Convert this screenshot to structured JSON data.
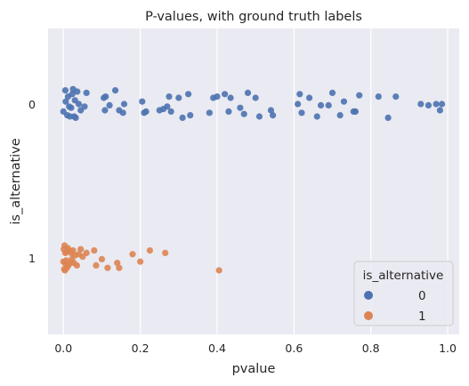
{
  "chart_data": {
    "type": "scatter",
    "title": "P-values, with ground truth labels",
    "xlabel": "pvalue",
    "ylabel": "is_alternative",
    "xlim": [
      -0.04,
      1.03
    ],
    "x_ticks": [
      "0.0",
      "0.2",
      "0.4",
      "0.6",
      "0.8",
      "1.0"
    ],
    "x_tick_values": [
      0.0,
      0.2,
      0.4,
      0.6,
      0.8,
      1.0
    ],
    "y_categories": [
      "0",
      "1"
    ],
    "grid": true,
    "background": "#eaeaf2",
    "legend": {
      "title": "is_alternative",
      "placement": "lower-right",
      "entries": [
        "0",
        "1"
      ]
    },
    "series": [
      {
        "name": "0",
        "category": "0",
        "color": "#4c72b0",
        "points": [
          [
            0.0,
            0.06
          ],
          [
            0.005,
            -0.11
          ],
          [
            0.006,
            -0.02
          ],
          [
            0.01,
            0.09
          ],
          [
            0.012,
            -0.06
          ],
          [
            0.015,
            0.02
          ],
          [
            0.017,
            0.1
          ],
          [
            0.02,
            0.03
          ],
          [
            0.023,
            -0.08
          ],
          [
            0.025,
            -0.12
          ],
          [
            0.028,
            0.1
          ],
          [
            0.03,
            -0.03
          ],
          [
            0.032,
            0.11
          ],
          [
            0.036,
            -0.1
          ],
          [
            0.04,
            0.0
          ],
          [
            0.045,
            0.05
          ],
          [
            0.055,
            0.02
          ],
          [
            0.06,
            -0.09
          ],
          [
            0.105,
            -0.05
          ],
          [
            0.108,
            0.05
          ],
          [
            0.11,
            -0.06
          ],
          [
            0.12,
            0.01
          ],
          [
            0.135,
            -0.11
          ],
          [
            0.145,
            0.05
          ],
          [
            0.155,
            0.07
          ],
          [
            0.158,
            0.0
          ],
          [
            0.205,
            -0.02
          ],
          [
            0.21,
            0.07
          ],
          [
            0.215,
            0.06
          ],
          [
            0.25,
            0.05
          ],
          [
            0.26,
            0.04
          ],
          [
            0.27,
            0.02
          ],
          [
            0.275,
            -0.06
          ],
          [
            0.28,
            0.06
          ],
          [
            0.3,
            -0.05
          ],
          [
            0.31,
            0.11
          ],
          [
            0.325,
            -0.08
          ],
          [
            0.33,
            0.09
          ],
          [
            0.38,
            0.07
          ],
          [
            0.39,
            -0.05
          ],
          [
            0.4,
            -0.06
          ],
          [
            0.42,
            -0.08
          ],
          [
            0.43,
            0.06
          ],
          [
            0.435,
            -0.05
          ],
          [
            0.46,
            0.03
          ],
          [
            0.47,
            0.08
          ],
          [
            0.48,
            -0.09
          ],
          [
            0.5,
            -0.05
          ],
          [
            0.51,
            0.1
          ],
          [
            0.54,
            0.05
          ],
          [
            0.545,
            0.09
          ],
          [
            0.61,
            0.0
          ],
          [
            0.615,
            -0.08
          ],
          [
            0.62,
            0.07
          ],
          [
            0.64,
            -0.05
          ],
          [
            0.66,
            0.1
          ],
          [
            0.67,
            0.01
          ],
          [
            0.69,
            0.01
          ],
          [
            0.7,
            -0.09
          ],
          [
            0.72,
            0.09
          ],
          [
            0.73,
            -0.02
          ],
          [
            0.755,
            0.06
          ],
          [
            0.76,
            0.06
          ],
          [
            0.77,
            -0.07
          ],
          [
            0.82,
            -0.06
          ],
          [
            0.845,
            0.11
          ],
          [
            0.865,
            -0.06
          ],
          [
            0.93,
            0.0
          ],
          [
            0.95,
            0.01
          ],
          [
            0.97,
            0.0
          ],
          [
            0.98,
            0.05
          ],
          [
            0.985,
            0.0
          ]
        ]
      },
      {
        "name": "1",
        "category": "1",
        "color": "#dd8452",
        "points": [
          [
            0.0,
            0.03
          ],
          [
            0.001,
            -0.07
          ],
          [
            0.002,
            0.09
          ],
          [
            0.003,
            -0.1
          ],
          [
            0.004,
            0.1
          ],
          [
            0.005,
            -0.04
          ],
          [
            0.006,
            0.05
          ],
          [
            0.007,
            0.02
          ],
          [
            0.008,
            -0.05
          ],
          [
            0.009,
            0.08
          ],
          [
            0.011,
            -0.08
          ],
          [
            0.013,
            0.06
          ],
          [
            0.015,
            -0.06
          ],
          [
            0.017,
            0.04
          ],
          [
            0.02,
            -0.04
          ],
          [
            0.022,
            0.01
          ],
          [
            0.025,
            -0.06
          ],
          [
            0.027,
            0.04
          ],
          [
            0.03,
            -0.02
          ],
          [
            0.035,
            0.06
          ],
          [
            0.04,
            -0.03
          ],
          [
            0.045,
            -0.07
          ],
          [
            0.05,
            -0.01
          ],
          [
            0.06,
            -0.04
          ],
          [
            0.08,
            -0.06
          ],
          [
            0.085,
            0.06
          ],
          [
            0.1,
            0.01
          ],
          [
            0.115,
            0.08
          ],
          [
            0.14,
            0.04
          ],
          [
            0.145,
            0.08
          ],
          [
            0.18,
            -0.03
          ],
          [
            0.2,
            0.03
          ],
          [
            0.225,
            -0.06
          ],
          [
            0.265,
            -0.04
          ],
          [
            0.405,
            0.1
          ]
        ]
      }
    ]
  }
}
